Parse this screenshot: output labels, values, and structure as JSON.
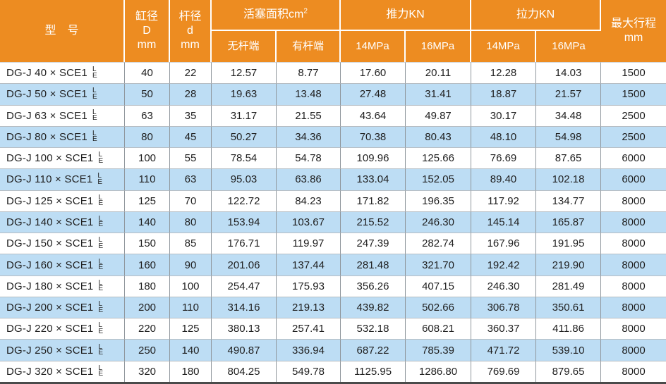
{
  "colors": {
    "header_bg": "#ED8C21",
    "header_text": "#FFFFFF",
    "row_bg": "#FFFFFF",
    "row_alt_bg": "#BDDDF4",
    "body_text": "#1F1F1F",
    "grid_line": "#8F969C",
    "row_line": "#B7BEC4",
    "bottom_border": "#4A4A4A"
  },
  "table": {
    "header": {
      "model": "型　号",
      "bore": "缸径\nD\nmm",
      "rod": "杆径\nd\nmm",
      "piston_area_label": "活塞面积cm",
      "piston_area_sup": "2",
      "piston_sub": [
        "无杆端",
        "有杆端"
      ],
      "push_label": "推力KN",
      "push_sub": [
        "14MPa",
        "16MPa"
      ],
      "pull_label": "拉力KN",
      "pull_sub": [
        "14MPa",
        "16MPa"
      ],
      "max_stroke": "最大行程\nmm"
    },
    "model_suffix": {
      "top": "L",
      "bottom": "E"
    },
    "rows": [
      {
        "model": "DG-J 40 × SCE1",
        "bore": "40",
        "rod": "22",
        "area_rodless": "12.57",
        "area_rod": "8.77",
        "push_14mpa": "17.60",
        "push_16mpa": "20.11",
        "pull_14mpa": "12.28",
        "pull_16mpa": "14.03",
        "stroke": "1500"
      },
      {
        "model": "DG-J 50 × SCE1",
        "bore": "50",
        "rod": "28",
        "area_rodless": "19.63",
        "area_rod": "13.48",
        "push_14mpa": "27.48",
        "push_16mpa": "31.41",
        "pull_14mpa": "18.87",
        "pull_16mpa": "21.57",
        "stroke": "1500"
      },
      {
        "model": "DG-J 63 × SCE1",
        "bore": "63",
        "rod": "35",
        "area_rodless": "31.17",
        "area_rod": "21.55",
        "push_14mpa": "43.64",
        "push_16mpa": "49.87",
        "pull_14mpa": "30.17",
        "pull_16mpa": "34.48",
        "stroke": "2500"
      },
      {
        "model": "DG-J 80 × SCE1",
        "bore": "80",
        "rod": "45",
        "area_rodless": "50.27",
        "area_rod": "34.36",
        "push_14mpa": "70.38",
        "push_16mpa": "80.43",
        "pull_14mpa": "48.10",
        "pull_16mpa": "54.98",
        "stroke": "2500"
      },
      {
        "model": "DG-J 100 × SCE1",
        "bore": "100",
        "rod": "55",
        "area_rodless": "78.54",
        "area_rod": "54.78",
        "push_14mpa": "109.96",
        "push_16mpa": "125.66",
        "pull_14mpa": "76.69",
        "pull_16mpa": "87.65",
        "stroke": "6000"
      },
      {
        "model": "DG-J 110 × SCE1",
        "bore": "110",
        "rod": "63",
        "area_rodless": "95.03",
        "area_rod": "63.86",
        "push_14mpa": "133.04",
        "push_16mpa": "152.05",
        "pull_14mpa": "89.40",
        "pull_16mpa": "102.18",
        "stroke": "6000"
      },
      {
        "model": "DG-J 125 × SCE1",
        "bore": "125",
        "rod": "70",
        "area_rodless": "122.72",
        "area_rod": "84.23",
        "push_14mpa": "171.82",
        "push_16mpa": "196.35",
        "pull_14mpa": "117.92",
        "pull_16mpa": "134.77",
        "stroke": "8000"
      },
      {
        "model": "DG-J 140 × SCE1",
        "bore": "140",
        "rod": "80",
        "area_rodless": "153.94",
        "area_rod": "103.67",
        "push_14mpa": "215.52",
        "push_16mpa": "246.30",
        "pull_14mpa": "145.14",
        "pull_16mpa": "165.87",
        "stroke": "8000"
      },
      {
        "model": "DG-J 150 × SCE1",
        "bore": "150",
        "rod": "85",
        "area_rodless": "176.71",
        "area_rod": "119.97",
        "push_14mpa": "247.39",
        "push_16mpa": "282.74",
        "pull_14mpa": "167.96",
        "pull_16mpa": "191.95",
        "stroke": "8000"
      },
      {
        "model": "DG-J 160 × SCE1",
        "bore": "160",
        "rod": "90",
        "area_rodless": "201.06",
        "area_rod": "137.44",
        "push_14mpa": "281.48",
        "push_16mpa": "321.70",
        "pull_14mpa": "192.42",
        "pull_16mpa": "219.90",
        "stroke": "8000"
      },
      {
        "model": "DG-J 180 × SCE1",
        "bore": "180",
        "rod": "100",
        "area_rodless": "254.47",
        "area_rod": "175.93",
        "push_14mpa": "356.26",
        "push_16mpa": "407.15",
        "pull_14mpa": "246.30",
        "pull_16mpa": "281.49",
        "stroke": "8000"
      },
      {
        "model": "DG-J 200 × SCE1",
        "bore": "200",
        "rod": "110",
        "area_rodless": "314.16",
        "area_rod": "219.13",
        "push_14mpa": "439.82",
        "push_16mpa": "502.66",
        "pull_14mpa": "306.78",
        "pull_16mpa": "350.61",
        "stroke": "8000"
      },
      {
        "model": "DG-J 220 × SCE1",
        "bore": "220",
        "rod": "125",
        "area_rodless": "380.13",
        "area_rod": "257.41",
        "push_14mpa": "532.18",
        "push_16mpa": "608.21",
        "pull_14mpa": "360.37",
        "pull_16mpa": "411.86",
        "stroke": "8000"
      },
      {
        "model": "DG-J 250 × SCE1",
        "bore": "250",
        "rod": "140",
        "area_rodless": "490.87",
        "area_rod": "336.94",
        "push_14mpa": "687.22",
        "push_16mpa": "785.39",
        "pull_14mpa": "471.72",
        "pull_16mpa": "539.10",
        "stroke": "8000"
      },
      {
        "model": "DG-J 320 × SCE1",
        "bore": "320",
        "rod": "180",
        "area_rodless": "804.25",
        "area_rod": "549.78",
        "push_14mpa": "1125.95",
        "push_16mpa": "1286.80",
        "pull_14mpa": "769.69",
        "pull_16mpa": "879.65",
        "stroke": "8000"
      }
    ]
  }
}
